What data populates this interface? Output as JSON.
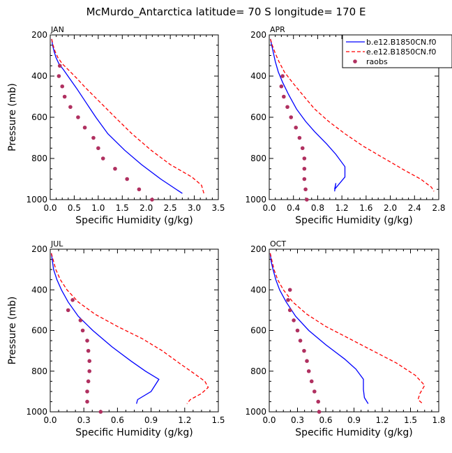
{
  "figure_title": "McMurdo_Antarctica  latitude= 70 S longitude= 170 E",
  "legend": {
    "entries": [
      {
        "label": "b.e12.B1850CN.f0",
        "color": "#0000ff",
        "style": "solid"
      },
      {
        "label": "e.e12.B1850CN.f0",
        "color": "#ff0000",
        "style": "dashed"
      },
      {
        "label": "raobs",
        "color": "#b03060",
        "style": "marker"
      }
    ]
  },
  "chart_data": [
    {
      "type": "line",
      "title": "JAN",
      "xlabel": "Specific Humidity (g/kg)",
      "ylabel": "Pressure (mb)",
      "xlim": [
        0,
        3.5
      ],
      "ylim": [
        200,
        1000
      ],
      "y_inverted": true,
      "xticks": [
        "0.0",
        "0.5",
        "1.0",
        "1.5",
        "2.0",
        "2.5",
        "3.0",
        "3.5"
      ],
      "xtick_values": [
        0,
        0.5,
        1.0,
        1.5,
        2.0,
        2.5,
        3.0,
        3.5
      ],
      "yticks": [
        "200",
        "400",
        "600",
        "800",
        "1000"
      ],
      "ytick_values": [
        200,
        400,
        600,
        800,
        1000
      ],
      "series": [
        {
          "name": "b.e12.B1850CN.f0",
          "color": "#0000ff",
          "style": "solid",
          "points": [
            [
              0.03,
              220
            ],
            [
              0.05,
              250
            ],
            [
              0.08,
              280
            ],
            [
              0.12,
              310
            ],
            [
              0.18,
              340
            ],
            [
              0.28,
              370
            ],
            [
              0.4,
              410
            ],
            [
              0.55,
              460
            ],
            [
              0.75,
              530
            ],
            [
              0.95,
              600
            ],
            [
              1.2,
              680
            ],
            [
              1.55,
              760
            ],
            [
              1.9,
              830
            ],
            [
              2.3,
              900
            ],
            [
              2.75,
              970
            ]
          ]
        },
        {
          "name": "e.e12.B1850CN.f0",
          "color": "#ff0000",
          "style": "dashed",
          "points": [
            [
              0.03,
              220
            ],
            [
              0.06,
              250
            ],
            [
              0.1,
              280
            ],
            [
              0.16,
              310
            ],
            [
              0.25,
              340
            ],
            [
              0.38,
              370
            ],
            [
              0.55,
              410
            ],
            [
              0.75,
              460
            ],
            [
              1.05,
              530
            ],
            [
              1.35,
              600
            ],
            [
              1.7,
              680
            ],
            [
              2.1,
              760
            ],
            [
              2.5,
              830
            ],
            [
              2.95,
              890
            ],
            [
              3.15,
              930
            ],
            [
              3.2,
              970
            ]
          ]
        },
        {
          "name": "raobs",
          "color": "#b03060",
          "style": "marker",
          "points": [
            [
              0.2,
              350
            ],
            [
              0.18,
              400
            ],
            [
              0.25,
              450
            ],
            [
              0.3,
              500
            ],
            [
              0.42,
              550
            ],
            [
              0.58,
              600
            ],
            [
              0.72,
              650
            ],
            [
              0.9,
              700
            ],
            [
              1.0,
              750
            ],
            [
              1.1,
              800
            ],
            [
              1.35,
              850
            ],
            [
              1.6,
              900
            ],
            [
              1.85,
              950
            ],
            [
              2.12,
              1000
            ]
          ]
        }
      ]
    },
    {
      "type": "line",
      "title": "APR",
      "xlabel": "Specific Humidity (g/kg)",
      "ylabel": "",
      "xlim": [
        0,
        2.8
      ],
      "ylim": [
        200,
        1000
      ],
      "y_inverted": true,
      "xticks": [
        "0.0",
        "0.4",
        "0.8",
        "1.2",
        "1.6",
        "2.0",
        "2.4",
        "2.8"
      ],
      "xtick_values": [
        0,
        0.4,
        0.8,
        1.2,
        1.6,
        2.0,
        2.4,
        2.8
      ],
      "yticks": [
        "200",
        "400",
        "600",
        "800",
        "1000"
      ],
      "ytick_values": [
        200,
        400,
        600,
        800,
        1000
      ],
      "series": [
        {
          "name": "b.e12.B1850CN.f0",
          "color": "#0000ff",
          "style": "solid",
          "points": [
            [
              0.02,
              220
            ],
            [
              0.04,
              250
            ],
            [
              0.07,
              290
            ],
            [
              0.1,
              330
            ],
            [
              0.15,
              380
            ],
            [
              0.22,
              430
            ],
            [
              0.32,
              490
            ],
            [
              0.45,
              560
            ],
            [
              0.6,
              620
            ],
            [
              0.75,
              670
            ],
            [
              0.95,
              730
            ],
            [
              1.1,
              780
            ],
            [
              1.25,
              840
            ],
            [
              1.25,
              890
            ],
            [
              1.08,
              950
            ],
            [
              1.1,
              920
            ],
            [
              1.08,
              960
            ]
          ]
        },
        {
          "name": "e.e12.B1850CN.f0",
          "color": "#ff0000",
          "style": "dashed",
          "points": [
            [
              0.02,
              220
            ],
            [
              0.05,
              250
            ],
            [
              0.1,
              290
            ],
            [
              0.16,
              330
            ],
            [
              0.25,
              380
            ],
            [
              0.38,
              430
            ],
            [
              0.55,
              490
            ],
            [
              0.75,
              560
            ],
            [
              0.98,
              620
            ],
            [
              1.25,
              680
            ],
            [
              1.55,
              740
            ],
            [
              1.9,
              800
            ],
            [
              2.25,
              860
            ],
            [
              2.5,
              900
            ],
            [
              2.68,
              940
            ],
            [
              2.72,
              960
            ]
          ]
        },
        {
          "name": "raobs",
          "color": "#b03060",
          "style": "marker",
          "points": [
            [
              0.22,
              400
            ],
            [
              0.2,
              450
            ],
            [
              0.24,
              500
            ],
            [
              0.3,
              550
            ],
            [
              0.36,
              600
            ],
            [
              0.44,
              650
            ],
            [
              0.5,
              700
            ],
            [
              0.55,
              750
            ],
            [
              0.58,
              800
            ],
            [
              0.58,
              850
            ],
            [
              0.58,
              900
            ],
            [
              0.6,
              950
            ],
            [
              0.62,
              1000
            ]
          ]
        }
      ]
    },
    {
      "type": "line",
      "title": "JUL",
      "xlabel": "Specific Humidity (g/kg)",
      "ylabel": "Pressure (mb)",
      "xlim": [
        0,
        1.5
      ],
      "ylim": [
        200,
        1000
      ],
      "y_inverted": true,
      "xticks": [
        "0.0",
        "0.3",
        "0.6",
        "0.9",
        "1.2",
        "1.5"
      ],
      "xtick_values": [
        0,
        0.3,
        0.6,
        0.9,
        1.2,
        1.5
      ],
      "yticks": [
        "200",
        "400",
        "600",
        "800",
        "1000"
      ],
      "ytick_values": [
        200,
        400,
        600,
        800,
        1000
      ],
      "series": [
        {
          "name": "b.e12.B1850CN.f0",
          "color": "#0000ff",
          "style": "solid",
          "points": [
            [
              0.01,
              220
            ],
            [
              0.02,
              260
            ],
            [
              0.03,
              300
            ],
            [
              0.06,
              350
            ],
            [
              0.1,
              400
            ],
            [
              0.16,
              460
            ],
            [
              0.25,
              530
            ],
            [
              0.38,
              600
            ],
            [
              0.55,
              680
            ],
            [
              0.72,
              750
            ],
            [
              0.85,
              800
            ],
            [
              0.97,
              840
            ],
            [
              0.9,
              900
            ],
            [
              0.78,
              940
            ],
            [
              0.77,
              960
            ]
          ]
        },
        {
          "name": "e.e12.B1850CN.f0",
          "color": "#ff0000",
          "style": "dashed",
          "points": [
            [
              0.01,
              220
            ],
            [
              0.03,
              260
            ],
            [
              0.05,
              300
            ],
            [
              0.09,
              350
            ],
            [
              0.15,
              400
            ],
            [
              0.25,
              460
            ],
            [
              0.4,
              520
            ],
            [
              0.6,
              580
            ],
            [
              0.82,
              640
            ],
            [
              1.0,
              700
            ],
            [
              1.15,
              760
            ],
            [
              1.28,
              810
            ],
            [
              1.38,
              850
            ],
            [
              1.41,
              880
            ],
            [
              1.35,
              910
            ],
            [
              1.25,
              940
            ],
            [
              1.22,
              960
            ]
          ]
        },
        {
          "name": "raobs",
          "color": "#b03060",
          "style": "marker",
          "points": [
            [
              0.2,
              450
            ],
            [
              0.16,
              500
            ],
            [
              0.27,
              550
            ],
            [
              0.29,
              600
            ],
            [
              0.33,
              650
            ],
            [
              0.34,
              700
            ],
            [
              0.35,
              750
            ],
            [
              0.35,
              800
            ],
            [
              0.34,
              850
            ],
            [
              0.33,
              900
            ],
            [
              0.33,
              950
            ],
            [
              0.45,
              1000
            ]
          ]
        }
      ]
    },
    {
      "type": "line",
      "title": "OCT",
      "xlabel": "Specific Humidity (g/kg)",
      "ylabel": "",
      "xlim": [
        0,
        1.8
      ],
      "ylim": [
        200,
        1000
      ],
      "y_inverted": true,
      "xticks": [
        "0.0",
        "0.3",
        "0.6",
        "0.9",
        "1.2",
        "1.5",
        "1.8"
      ],
      "xtick_values": [
        0,
        0.3,
        0.6,
        0.9,
        1.2,
        1.5,
        1.8
      ],
      "yticks": [
        "200",
        "400",
        "600",
        "800",
        "1000"
      ],
      "ytick_values": [
        200,
        400,
        600,
        800,
        1000
      ],
      "series": [
        {
          "name": "b.e12.B1850CN.f0",
          "color": "#0000ff",
          "style": "solid",
          "points": [
            [
              0.01,
              220
            ],
            [
              0.02,
              260
            ],
            [
              0.04,
              300
            ],
            [
              0.07,
              350
            ],
            [
              0.11,
              400
            ],
            [
              0.18,
              460
            ],
            [
              0.28,
              530
            ],
            [
              0.42,
              600
            ],
            [
              0.6,
              670
            ],
            [
              0.8,
              740
            ],
            [
              0.92,
              790
            ],
            [
              1.0,
              840
            ],
            [
              1.0,
              890
            ],
            [
              1.01,
              930
            ],
            [
              1.05,
              960
            ]
          ]
        },
        {
          "name": "e.e12.B1850CN.f0",
          "color": "#ff0000",
          "style": "dashed",
          "points": [
            [
              0.01,
              220
            ],
            [
              0.03,
              260
            ],
            [
              0.05,
              300
            ],
            [
              0.09,
              350
            ],
            [
              0.15,
              400
            ],
            [
              0.25,
              460
            ],
            [
              0.4,
              520
            ],
            [
              0.6,
              580
            ],
            [
              0.85,
              640
            ],
            [
              1.1,
              700
            ],
            [
              1.35,
              760
            ],
            [
              1.55,
              820
            ],
            [
              1.65,
              870
            ],
            [
              1.6,
              910
            ],
            [
              1.58,
              940
            ],
            [
              1.63,
              960
            ]
          ]
        },
        {
          "name": "raobs",
          "color": "#b03060",
          "style": "marker",
          "points": [
            [
              0.22,
              400
            ],
            [
              0.2,
              450
            ],
            [
              0.22,
              500
            ],
            [
              0.26,
              550
            ],
            [
              0.3,
              600
            ],
            [
              0.33,
              650
            ],
            [
              0.37,
              700
            ],
            [
              0.4,
              750
            ],
            [
              0.42,
              800
            ],
            [
              0.45,
              850
            ],
            [
              0.48,
              900
            ],
            [
              0.52,
              950
            ],
            [
              0.53,
              1000
            ]
          ]
        }
      ]
    }
  ]
}
